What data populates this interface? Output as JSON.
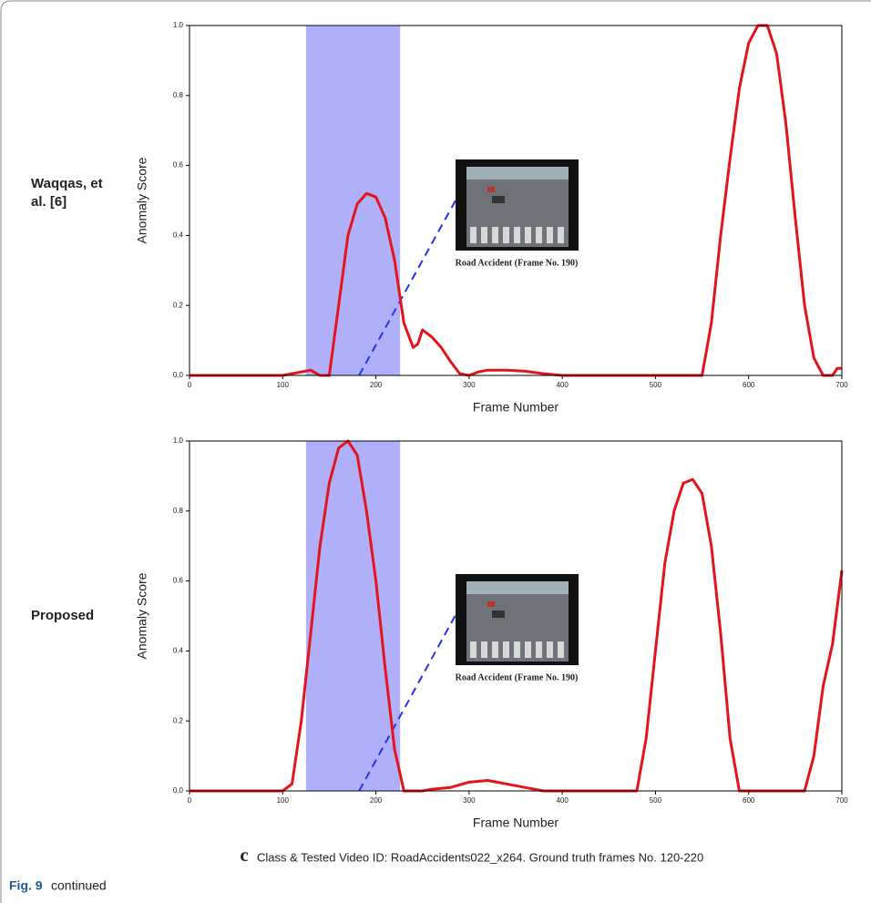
{
  "chart_data": [
    {
      "type": "line",
      "row_label": "Waqqas, et al. [6]",
      "y_label": "Anomaly Score",
      "x_label": "Frame Number",
      "inset_caption": "Road Accident (Frame No. 190)",
      "xlim": [
        0,
        700
      ],
      "ylim": [
        0,
        1
      ],
      "xticks": [
        0,
        100,
        200,
        300,
        400,
        500,
        600,
        700
      ],
      "yticks": [
        {
          "value": 0,
          "label": "0.0"
        },
        {
          "value": 0.2,
          "label": "0.2"
        },
        {
          "value": 0.4,
          "label": "0.4"
        },
        {
          "value": 0.6,
          "label": "0.6"
        },
        {
          "value": 0.8,
          "label": "0.8"
        },
        {
          "value": 1,
          "label": "1.0"
        }
      ],
      "ground_truth_span": [
        125,
        226
      ],
      "span_color": "#b0b0fa",
      "color": "#e3141c",
      "x": [
        0,
        100,
        120,
        130,
        140,
        150,
        160,
        170,
        180,
        190,
        200,
        210,
        220,
        230,
        240,
        245,
        250,
        260,
        270,
        280,
        290,
        300,
        310,
        320,
        340,
        360,
        380,
        400,
        530,
        550,
        560,
        570,
        580,
        590,
        600,
        610,
        620,
        630,
        640,
        650,
        660,
        670,
        680,
        690,
        695,
        700
      ],
      "values": [
        0,
        0,
        0.01,
        0.015,
        0,
        0,
        0.2,
        0.4,
        0.49,
        0.52,
        0.51,
        0.45,
        0.33,
        0.15,
        0.08,
        0.09,
        0.13,
        0.11,
        0.08,
        0.04,
        0.005,
        0,
        0.01,
        0.015,
        0.015,
        0.012,
        0.005,
        0,
        0,
        0,
        0.15,
        0.4,
        0.62,
        0.82,
        0.95,
        1.0,
        1.0,
        0.92,
        0.72,
        0.45,
        0.2,
        0.05,
        0,
        0,
        0.02,
        0.02
      ]
    },
    {
      "type": "line",
      "row_label": "Proposed",
      "y_label": "Anomaly Score",
      "x_label": "Frame Number",
      "inset_caption": "Road Accident (Frame No. 190)",
      "xlim": [
        0,
        700
      ],
      "ylim": [
        0,
        1
      ],
      "xticks": [
        0,
        100,
        200,
        300,
        400,
        500,
        600,
        700
      ],
      "yticks": [
        {
          "value": 0,
          "label": "0.0"
        },
        {
          "value": 0.2,
          "label": "0.2"
        },
        {
          "value": 0.4,
          "label": "0.4"
        },
        {
          "value": 0.6,
          "label": "0.6"
        },
        {
          "value": 0.8,
          "label": "0.8"
        },
        {
          "value": 1,
          "label": "1.0"
        }
      ],
      "ground_truth_span": [
        125,
        226
      ],
      "span_color": "#b0b0fa",
      "color": "#e3141c",
      "x": [
        0,
        100,
        110,
        120,
        130,
        140,
        150,
        160,
        170,
        180,
        190,
        200,
        210,
        220,
        230,
        250,
        260,
        280,
        300,
        320,
        340,
        360,
        380,
        480,
        490,
        500,
        510,
        520,
        530,
        540,
        550,
        560,
        570,
        580,
        590,
        660,
        670,
        680,
        690,
        700
      ],
      "values": [
        0,
        0,
        0.02,
        0.2,
        0.45,
        0.7,
        0.88,
        0.98,
        1.0,
        0.96,
        0.8,
        0.6,
        0.35,
        0.12,
        0,
        0,
        0.005,
        0.01,
        0.025,
        0.03,
        0.02,
        0.01,
        0,
        0,
        0.15,
        0.4,
        0.65,
        0.8,
        0.88,
        0.89,
        0.85,
        0.7,
        0.45,
        0.15,
        0,
        0,
        0.1,
        0.3,
        0.42,
        0.63
      ]
    }
  ],
  "caption_letter": "c",
  "caption": "Class & Tested Video ID: RoadAccidents022_x264. Ground truth frames No. 120-220",
  "figure_label": "Fig. 9",
  "figure_note": "continued"
}
